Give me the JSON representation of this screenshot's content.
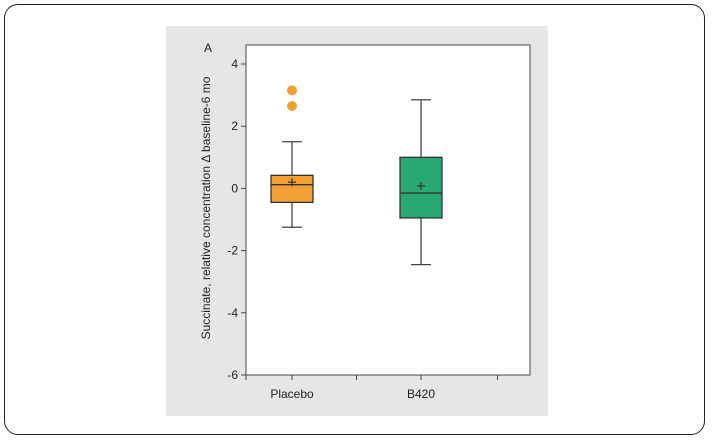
{
  "chart_data": {
    "type": "box",
    "panel_label": "A",
    "ylabel": "Succinate, relative concentration Δ baseline-6 mo",
    "xlabel": "",
    "ylim": [
      -6,
      4
    ],
    "yticks": [
      4,
      2,
      0,
      -2,
      -4,
      -6
    ],
    "ytick_labels": [
      "4",
      "2",
      "0",
      "-2",
      "-4",
      "-6"
    ],
    "categories": [
      "Placebo",
      "B420"
    ],
    "grid": false,
    "boxes": [
      {
        "category": "Placebo",
        "color": "#f2a036",
        "whisker_low": -1.25,
        "q1": -0.45,
        "median": 0.12,
        "q3": 0.42,
        "whisker_high": 1.5,
        "mean": 0.2,
        "outliers": [
          3.15,
          2.65
        ]
      },
      {
        "category": "B420",
        "color": "#2aa874",
        "whisker_low": -2.45,
        "q1": -0.95,
        "median": -0.15,
        "q3": 1.0,
        "whisker_high": 2.85,
        "mean": 0.08,
        "outliers": []
      }
    ]
  }
}
